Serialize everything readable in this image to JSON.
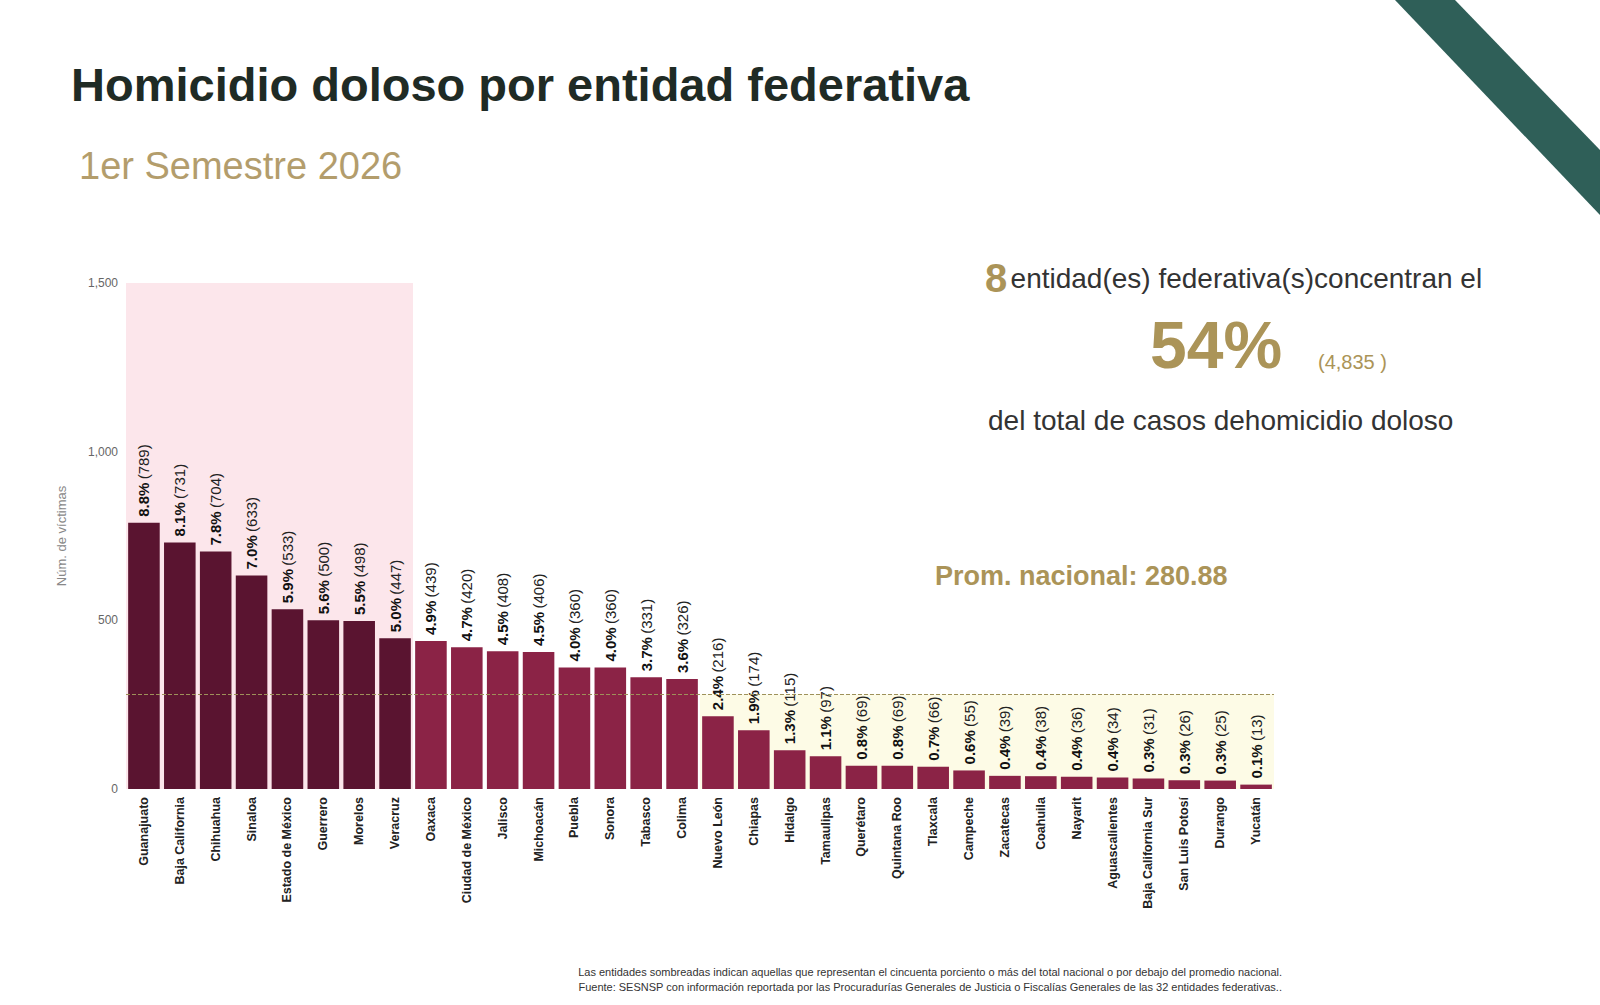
{
  "chart_data": {
    "type": "bar",
    "title": "Homicidio doloso por entidad federativa",
    "subtitle": "1er Semestre 2026",
    "y_label": "Núm. de víctimas",
    "categories": [
      "Guanajuato",
      "Baja California",
      "Chihuahua",
      "Sinaloa",
      "Estado de México",
      "Guerrero",
      "Morelos",
      "Veracruz",
      "Oaxaca",
      "Ciudad de México",
      "Jalisco",
      "Michoacán",
      "Puebla",
      "Sonora",
      "Tabasco",
      "Colima",
      "Nuevo León",
      "Chiapas",
      "Hidalgo",
      "Tamaulipas",
      "Querétaro",
      "Quintana Roo",
      "Tlaxcala",
      "Campeche",
      "Zacatecas",
      "Coahuila",
      "Nayarit",
      "Aguascalientes",
      "Baja California Sur",
      "San Luis Potosí",
      "Durango",
      "Yucatán"
    ],
    "values": [
      789,
      731,
      704,
      633,
      533,
      500,
      498,
      447,
      439,
      420,
      408,
      406,
      360,
      360,
      331,
      326,
      216,
      174,
      115,
      97,
      69,
      69,
      66,
      55,
      39,
      38,
      36,
      34,
      31,
      26,
      25,
      13
    ],
    "value_labels": [
      "8.8% (789)",
      "8.1% (731)",
      "7.8% (704)",
      "7.0% (633)",
      "5.9% (533)",
      "5.6% (500)",
      "5.5% (498)",
      "5.0% (447)",
      "4.9% (439)",
      "4.7% (420)",
      "4.5% (408)",
      "4.5% (406)",
      "4.0% (360)",
      "4.0% (360)",
      "3.7% (331)",
      "3.6% (326)",
      "2.4% (216)",
      "1.9% (174)",
      "1.3% (115)",
      "1.1% (97)",
      "0.8% (69)",
      "0.8% (69)",
      "0.7% (66)",
      "0.6% (55)",
      "0.4% (39)",
      "0.4% (38)",
      "0.4% (36)",
      "0.4% (34)",
      "0.3% (31)",
      "0.3% (26)",
      "0.3% (25)",
      "0.1% (13)"
    ],
    "colors": [
      "#5a1430",
      "#5a1430",
      "#5a1430",
      "#5a1430",
      "#5a1430",
      "#5a1430",
      "#5a1430",
      "#5a1430",
      "#8b2346",
      "#8b2346",
      "#8b2346",
      "#8b2346",
      "#8b2346",
      "#8b2346",
      "#8b2346",
      "#8b2346",
      "#8b2346",
      "#8b2346",
      "#8b2346",
      "#8b2346",
      "#8b2346",
      "#8b2346",
      "#8b2346",
      "#8b2346",
      "#8b2346",
      "#8b2346",
      "#8b2346",
      "#8b2346",
      "#8b2346",
      "#8b2346",
      "#8b2346",
      "#8b2346"
    ],
    "ylim": [
      0,
      1500
    ],
    "yticks": [
      0,
      500,
      {
        "value": 1000,
        "label": "1,000"
      },
      {
        "value": 1500,
        "label": "1,500"
      }
    ],
    "grid": false,
    "data_labels": true,
    "annotations": {
      "highlight": {
        "count": 8,
        "text": "entidad(es) federativa(s)concentran el",
        "share_label": "54%",
        "total_label": "(4,835 )",
        "text2": "del total de casos dehomicidio doloso"
      },
      "average": {
        "value": 280.88,
        "label": "Prom. nacional: 280.88"
      }
    },
    "notes": [
      "Las entidades sombreadas indican aquellas que representan el cincuenta porciento o más del total nacional o por debajo del promedio nacional.",
      "Fuente: SESNSP con información reportada por las Procuradurías Generales de Justicia o Fiscalías Generales de las 32 entidades federativas.."
    ]
  }
}
